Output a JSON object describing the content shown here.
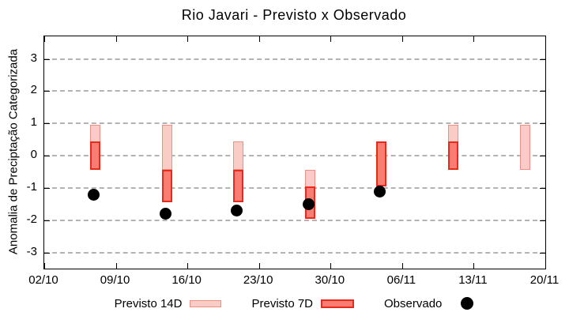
{
  "chart_data": {
    "type": "bar",
    "subtype": "floating-range-bars-with-scatter",
    "title": "Rio Javari - Previsto x Observado",
    "xlabel": "",
    "ylabel": "Anomalia de Preciptação Categorizada",
    "x_tick_labels": [
      "02/10",
      "09/10",
      "16/10",
      "23/10",
      "30/10",
      "06/11",
      "13/11",
      "20/11"
    ],
    "x_tick_days": [
      0,
      7,
      14,
      21,
      28,
      35,
      42,
      49
    ],
    "xlim_days": [
      0,
      49
    ],
    "y_ticks": [
      3,
      2,
      1,
      0,
      -1,
      -2,
      -3
    ],
    "ylim": [
      -3.5,
      3.7
    ],
    "grid": "horizontal-dashed-gray",
    "legend_position": "bottom-center",
    "series": [
      {
        "name": "Previsto 14D",
        "type": "range-bar",
        "fill_color": "#f9cdc6",
        "border_color": "#ef8e84",
        "points": [
          {
            "day": 5,
            "date": "07/10",
            "low": -0.45,
            "high": 0.95
          },
          {
            "day": 12,
            "date": "14/10",
            "low": -0.45,
            "high": 0.95
          },
          {
            "day": 19,
            "date": "21/10",
            "low": -0.45,
            "high": 0.45
          },
          {
            "day": 26,
            "date": "28/10",
            "low": -1.95,
            "high": -0.45
          },
          {
            "day": 40,
            "date": "11/11",
            "low": -0.45,
            "high": 0.95
          },
          {
            "day": 47,
            "date": "18/11",
            "low": -0.45,
            "high": 0.95
          }
        ]
      },
      {
        "name": "Previsto 7D",
        "type": "range-bar",
        "fill_color": "#fa7d73",
        "border_color": "#e62b1a",
        "points": [
          {
            "day": 5,
            "date": "07/10",
            "low": -0.45,
            "high": 0.45
          },
          {
            "day": 12,
            "date": "14/10",
            "low": -1.45,
            "high": -0.45
          },
          {
            "day": 19,
            "date": "21/10",
            "low": -1.45,
            "high": -0.45
          },
          {
            "day": 26,
            "date": "28/10",
            "low": -1.95,
            "high": -0.95
          },
          {
            "day": 33,
            "date": "04/11",
            "low": -0.95,
            "high": 0.45
          },
          {
            "day": 40,
            "date": "11/11",
            "low": -0.45,
            "high": 0.45
          }
        ]
      },
      {
        "name": "Observado",
        "type": "scatter",
        "color": "#000000",
        "points": [
          {
            "day": 5,
            "date": "07/10",
            "value": -1.2
          },
          {
            "day": 12,
            "date": "14/10",
            "value": -1.8
          },
          {
            "day": 19,
            "date": "21/10",
            "value": -1.7
          },
          {
            "day": 26,
            "date": "28/10",
            "value": -1.5
          },
          {
            "day": 33,
            "date": "04/11",
            "value": -1.1
          }
        ]
      }
    ]
  }
}
